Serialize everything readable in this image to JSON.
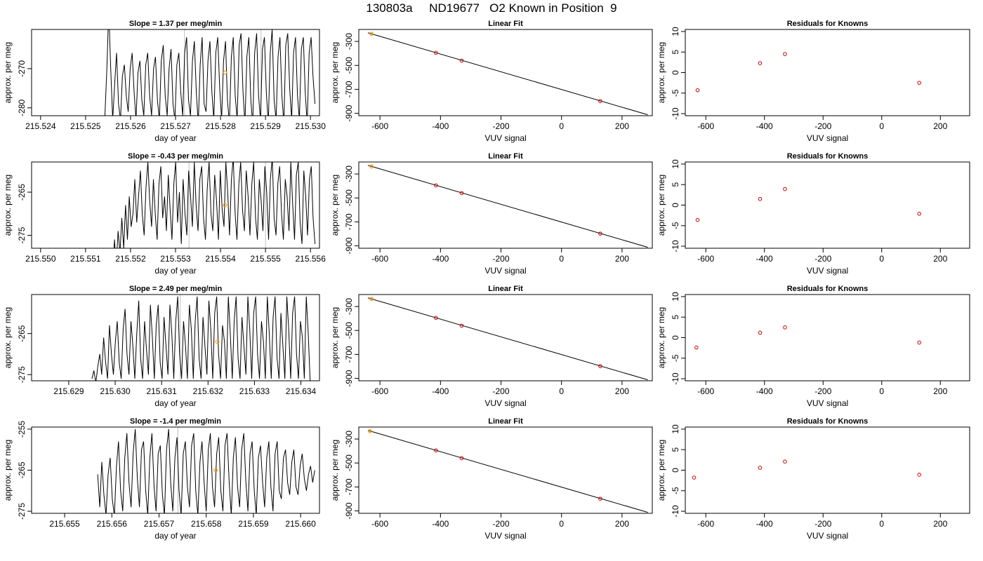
{
  "figure": {
    "title": "130803a     ND19677   O2 Known in Position  9"
  },
  "colors": {
    "trace": "#000000",
    "guide_line": "#bfbfbf",
    "highlight_point": "#ff9900",
    "known_point": "#cc0000",
    "fit_line": "#000000"
  },
  "chart_data": [
    {
      "panel": "row1-trace",
      "type": "line",
      "title": "Slope =  1.37  per meg/min",
      "xlabel": "day of year",
      "ylabel": "approx. per meg",
      "xlim": [
        215.5238,
        215.5302
      ],
      "ylim": [
        -282,
        -260
      ],
      "xticks": [
        215.524,
        215.525,
        215.526,
        215.527,
        215.528,
        215.529,
        215.53
      ],
      "xticklabels": [
        "215.524",
        "215.525",
        "215.526",
        "215.527",
        "215.528",
        "215.529",
        "215.530"
      ],
      "yticks": [
        -270,
        -280
      ],
      "yticklabels": [
        "-270",
        "-280"
      ],
      "x_start": 215.5253,
      "x_end": 215.5301,
      "trace": [
        -300,
        -295,
        -290,
        -282,
        -270,
        -255,
        -270,
        -283,
        -274,
        -266,
        -279,
        -283,
        -272,
        -269,
        -277,
        -281,
        -270,
        -266,
        -276,
        -283,
        -271,
        -268,
        -278,
        -282,
        -269,
        -266,
        -277,
        -282,
        -270,
        -267,
        -278,
        -283,
        -268,
        -264,
        -277,
        -282,
        -270,
        -265,
        -279,
        -283,
        -269,
        -266,
        -276,
        -282,
        -266,
        -262,
        -278,
        -282,
        -268,
        -263,
        -276,
        -284,
        -269,
        -262,
        -279,
        -281,
        -268,
        -263,
        -276,
        -283,
        -266,
        -262,
        -275,
        -283,
        -268,
        -263,
        -278,
        -284,
        -267,
        -262,
        -277,
        -283,
        -264,
        -261,
        -276,
        -284,
        -267,
        -262,
        -278,
        -284,
        -266,
        -261,
        -277,
        -283,
        -265,
        -262,
        -276,
        -284,
        -266,
        -260,
        -278,
        -283,
        -267,
        -262,
        -277,
        -284,
        -264,
        -261,
        -275,
        -283,
        -266,
        -262,
        -277,
        -283,
        -265,
        -262,
        -276,
        -284,
        -266,
        -262,
        -272,
        -279
      ],
      "vlines": [
        215.5272,
        215.5289
      ],
      "highlight": {
        "x": 215.5281,
        "y": -271
      }
    },
    {
      "panel": "row1-fit",
      "type": "line",
      "title": "Linear Fit",
      "xlabel": "VUV signal",
      "ylabel": "approx. per meg",
      "xlim": [
        -670,
        300
      ],
      "ylim": [
        -920,
        -200
      ],
      "xticks": [
        -600,
        -400,
        -200,
        0,
        200
      ],
      "xticklabels": [
        "-600",
        "-400",
        "-200",
        "0",
        "200"
      ],
      "yticks": [
        -300,
        -500,
        -700,
        -900
      ],
      "yticklabels": [
        "-300",
        "-500",
        "-700",
        "-900"
      ],
      "fit": {
        "x": [
          -640,
          285
        ],
        "y": [
          -228,
          -912
        ]
      },
      "points": {
        "x": [
          -415,
          -330,
          128
        ],
        "y": [
          -395,
          -460,
          -798
        ]
      },
      "highlight": {
        "x": -628,
        "y": -237
      }
    },
    {
      "panel": "row1-resid",
      "type": "scatter",
      "title": "Residuals for Knowns",
      "xlabel": "VUV signal",
      "ylabel": "approx. per meg",
      "xlim": [
        -670,
        300
      ],
      "ylim": [
        -10.5,
        10.5
      ],
      "xticks": [
        -600,
        -400,
        -200,
        0,
        200
      ],
      "xticklabels": [
        "-600",
        "-400",
        "-200",
        "0",
        "200"
      ],
      "yticks": [
        10,
        5,
        0,
        -5,
        -10
      ],
      "yticklabels": [
        "10",
        "5",
        "0",
        "-5",
        "-10"
      ],
      "points": {
        "x": [
          -628,
          -415,
          -330,
          128
        ],
        "y": [
          -4.3,
          2.3,
          4.5,
          -2.5
        ]
      }
    },
    {
      "panel": "row2-trace",
      "type": "line",
      "title": "Slope =  -0.43  per meg/min",
      "xlabel": "day of year",
      "ylabel": "approx. per meg",
      "xlim": [
        215.5498,
        215.5562
      ],
      "ylim": [
        -278,
        -258
      ],
      "xticks": [
        215.55,
        215.551,
        215.552,
        215.553,
        215.554,
        215.555,
        215.556
      ],
      "xticklabels": [
        "215.550",
        "215.551",
        "215.552",
        "215.553",
        "215.554",
        "215.555",
        "215.556"
      ],
      "yticks": [
        -265,
        -275
      ],
      "yticklabels": [
        "-265",
        "-275"
      ],
      "x_start": 215.5516,
      "x_end": 215.5561,
      "trace": [
        -285,
        -276,
        -282,
        -274,
        -279,
        -271,
        -278,
        -268,
        -276,
        -266,
        -273,
        -270,
        -262,
        -272,
        -266,
        -260,
        -270,
        -275,
        -264,
        -258,
        -267,
        -273,
        -262,
        -270,
        -276,
        -263,
        -259,
        -271,
        -266,
        -274,
        -261,
        -269,
        -276,
        -263,
        -258,
        -272,
        -265,
        -277,
        -262,
        -270,
        -275,
        -260,
        -266,
        -273,
        -258,
        -268,
        -274,
        -262,
        -259,
        -271,
        -276,
        -264,
        -258,
        -270,
        -274,
        -261,
        -267,
        -276,
        -260,
        -269,
        -273,
        -258,
        -265,
        -275,
        -262,
        -257,
        -270,
        -276,
        -263,
        -258,
        -269,
        -274,
        -260,
        -266,
        -275,
        -263,
        -258,
        -271,
        -276,
        -262,
        -267,
        -274,
        -259,
        -265,
        -276,
        -262,
        -257,
        -271,
        -275,
        -263,
        -259,
        -270,
        -276,
        -262,
        -266,
        -274,
        -258,
        -268,
        -276,
        -261,
        -258,
        -272,
        -277,
        -260,
        -266,
        -275,
        -262,
        -259,
        -271,
        -277
      ],
      "vlines": [
        215.5533,
        215.555
      ],
      "highlight": {
        "x": 215.5541,
        "y": -268
      }
    },
    {
      "panel": "row2-fit",
      "type": "line",
      "title": "Linear Fit",
      "xlabel": "VUV signal",
      "ylabel": "approx. per meg",
      "xlim": [
        -670,
        300
      ],
      "ylim": [
        -920,
        -200
      ],
      "xticks": [
        -600,
        -400,
        -200,
        0,
        200
      ],
      "xticklabels": [
        "-600",
        "-400",
        "-200",
        "0",
        "200"
      ],
      "yticks": [
        -300,
        -500,
        -700,
        -900
      ],
      "yticklabels": [
        "-300",
        "-500",
        "-700",
        "-900"
      ],
      "fit": {
        "x": [
          -640,
          285
        ],
        "y": [
          -228,
          -912
        ]
      },
      "points": {
        "x": [
          -415,
          -330,
          128
        ],
        "y": [
          -395,
          -460,
          -798
        ]
      },
      "highlight": {
        "x": -628,
        "y": -237
      }
    },
    {
      "panel": "row2-resid",
      "type": "scatter",
      "title": "Residuals for Knowns",
      "xlabel": "VUV signal",
      "ylabel": "approx. per meg",
      "xlim": [
        -670,
        300
      ],
      "ylim": [
        -10.5,
        10.5
      ],
      "xticks": [
        -600,
        -400,
        -200,
        0,
        200
      ],
      "xticklabels": [
        "-600",
        "-400",
        "-200",
        "0",
        "200"
      ],
      "yticks": [
        10,
        5,
        0,
        -5,
        -10
      ],
      "yticklabels": [
        "10",
        "5",
        "0",
        "-5",
        "-10"
      ],
      "points": {
        "x": [
          -628,
          -415,
          -330,
          128
        ],
        "y": [
          -3.6,
          1.5,
          3.9,
          -2.1
        ]
      }
    },
    {
      "panel": "row3-trace",
      "type": "line",
      "title": "Slope =  2.49  per meg/min",
      "xlabel": "day of year",
      "ylabel": "approx. per meg",
      "xlim": [
        215.6282,
        215.6344
      ],
      "ylim": [
        -276.5,
        -255.5
      ],
      "xticks": [
        215.629,
        215.63,
        215.631,
        215.632,
        215.633,
        215.634
      ],
      "xticklabels": [
        "215.629",
        "215.630",
        "215.631",
        "215.632",
        "215.633",
        "215.634"
      ],
      "yticks": [
        -265,
        -275
      ],
      "yticklabels": [
        "-265",
        "-275"
      ],
      "x_start": 215.6295,
      "x_end": 215.6342,
      "trace": [
        -276,
        -274,
        -277,
        -273,
        -270,
        -275,
        -266,
        -272,
        -276,
        -263,
        -270,
        -275,
        -267,
        -262,
        -272,
        -276,
        -264,
        -259,
        -270,
        -275,
        -262,
        -268,
        -276,
        -265,
        -257,
        -271,
        -276,
        -262,
        -269,
        -275,
        -258,
        -266,
        -276,
        -263,
        -258,
        -272,
        -276,
        -261,
        -268,
        -275,
        -258,
        -265,
        -276,
        -262,
        -256,
        -270,
        -276,
        -262,
        -268,
        -276,
        -258,
        -264,
        -276,
        -262,
        -256,
        -271,
        -276,
        -261,
        -268,
        -275,
        -257,
        -264,
        -276,
        -260,
        -256,
        -270,
        -276,
        -263,
        -267,
        -276,
        -256,
        -265,
        -276,
        -262,
        -256,
        -271,
        -276,
        -261,
        -268,
        -275,
        -256,
        -264,
        -276,
        -260,
        -256,
        -270,
        -276,
        -262,
        -267,
        -276,
        -256,
        -265,
        -276,
        -261,
        -256,
        -271,
        -276,
        -260,
        -268,
        -276,
        -256,
        -264,
        -276,
        -260,
        -256,
        -270,
        -276,
        -262,
        -266,
        -276,
        -256,
        -265,
        -277
      ],
      "vlines": [
        215.6314
      ],
      "highlight": {
        "x": 215.6322,
        "y": -267
      }
    },
    {
      "panel": "row3-fit",
      "type": "line",
      "title": "Linear Fit",
      "xlabel": "VUV signal",
      "ylabel": "approx. per meg",
      "xlim": [
        -670,
        300
      ],
      "ylim": [
        -920,
        -200
      ],
      "xticks": [
        -600,
        -400,
        -200,
        0,
        200
      ],
      "xticklabels": [
        "-600",
        "-400",
        "-200",
        "0",
        "200"
      ],
      "yticks": [
        -300,
        -500,
        -700,
        -900
      ],
      "yticklabels": [
        "-300",
        "-500",
        "-700",
        "-900"
      ],
      "fit": {
        "x": [
          -640,
          285
        ],
        "y": [
          -228,
          -912
        ]
      },
      "points": {
        "x": [
          -415,
          -330,
          128
        ],
        "y": [
          -395,
          -460,
          -798
        ]
      },
      "highlight": {
        "x": -628,
        "y": -237
      }
    },
    {
      "panel": "row3-resid",
      "type": "scatter",
      "title": "Residuals for Knowns",
      "xlabel": "VUV signal",
      "ylabel": "approx. per meg",
      "xlim": [
        -670,
        300
      ],
      "ylim": [
        -10.5,
        10.5
      ],
      "xticks": [
        -600,
        -400,
        -200,
        0,
        200
      ],
      "xticklabels": [
        "-600",
        "-400",
        "-200",
        "0",
        "200"
      ],
      "yticks": [
        10,
        5,
        0,
        -5,
        -10
      ],
      "yticklabels": [
        "10",
        "5",
        "0",
        "-5",
        "-10"
      ],
      "points": {
        "x": [
          -632,
          -415,
          -330,
          128
        ],
        "y": [
          -2.4,
          1.2,
          2.5,
          -1.2
        ]
      }
    },
    {
      "panel": "row4-trace",
      "type": "line",
      "title": "Slope =  -1.4  per meg/min",
      "xlabel": "day of year",
      "ylabel": "approx. per meg",
      "xlim": [
        215.6543,
        215.6604
      ],
      "ylim": [
        -275.5,
        -254.5
      ],
      "xticks": [
        215.655,
        215.656,
        215.657,
        215.658,
        215.659,
        215.66
      ],
      "xticklabels": [
        "215.655",
        "215.656",
        "215.657",
        "215.658",
        "215.659",
        "215.660"
      ],
      "yticks": [
        -255,
        -265,
        -275
      ],
      "yticklabels": [
        "-255",
        "-265",
        "-275"
      ],
      "x_start": 215.6557,
      "x_end": 215.6603,
      "trace": [
        -266,
        -274,
        -263,
        -271,
        -276,
        -266,
        -262,
        -272,
        -276,
        -264,
        -258,
        -270,
        -275,
        -262,
        -256,
        -268,
        -274,
        -261,
        -255,
        -267,
        -274,
        -260,
        -258,
        -270,
        -276,
        -262,
        -256,
        -269,
        -275,
        -261,
        -259,
        -271,
        -276,
        -260,
        -255,
        -268,
        -275,
        -262,
        -257,
        -270,
        -276,
        -261,
        -258,
        -269,
        -274,
        -259,
        -256,
        -270,
        -276,
        -263,
        -258,
        -268,
        -275,
        -260,
        -256,
        -269,
        -274,
        -261,
        -257,
        -270,
        -275,
        -259,
        -256,
        -268,
        -276,
        -262,
        -257,
        -269,
        -274,
        -260,
        -256,
        -268,
        -275,
        -261,
        -258,
        -270,
        -276,
        -262,
        -259,
        -268,
        -274,
        -262,
        -258,
        -269,
        -275,
        -261,
        -258,
        -270,
        -272,
        -262,
        -260,
        -268,
        -271,
        -263,
        -260,
        -269,
        -271,
        -264,
        -261,
        -267,
        -270,
        -266,
        -264,
        -268,
        -265
      ],
      "vlines": [
        215.6574
      ],
      "highlight": {
        "x": 215.6582,
        "y": -265
      }
    },
    {
      "panel": "row4-fit",
      "type": "line",
      "title": "Linear Fit",
      "xlabel": "VUV signal",
      "ylabel": "approx. per meg",
      "xlim": [
        -670,
        300
      ],
      "ylim": [
        -920,
        -200
      ],
      "xticks": [
        -600,
        -400,
        -200,
        0,
        200
      ],
      "xticklabels": [
        "-600",
        "-400",
        "-200",
        "0",
        "200"
      ],
      "yticks": [
        -300,
        -500,
        -700,
        -900
      ],
      "yticklabels": [
        "-300",
        "-500",
        "-700",
        "-900"
      ],
      "fit": {
        "x": [
          -640,
          285
        ],
        "y": [
          -228,
          -912
        ]
      },
      "points": {
        "x": [
          -415,
          -330,
          128
        ],
        "y": [
          -395,
          -460,
          -798
        ]
      },
      "highlight": {
        "x": -633,
        "y": -234
      }
    },
    {
      "panel": "row4-resid",
      "type": "scatter",
      "title": "Residuals for Knowns",
      "xlabel": "VUV signal",
      "ylabel": "approx. per meg",
      "xlim": [
        -670,
        300
      ],
      "ylim": [
        -10.5,
        10.5
      ],
      "xticks": [
        -600,
        -400,
        -200,
        0,
        200
      ],
      "xticklabels": [
        "-600",
        "-400",
        "-200",
        "0",
        "200"
      ],
      "yticks": [
        10,
        5,
        0,
        -5,
        -10
      ],
      "yticklabels": [
        "10",
        "5",
        "0",
        "-5",
        "-10"
      ],
      "points": {
        "x": [
          -640,
          -415,
          -330,
          128
        ],
        "y": [
          -1.8,
          0.6,
          2.1,
          -1.1
        ]
      }
    }
  ]
}
